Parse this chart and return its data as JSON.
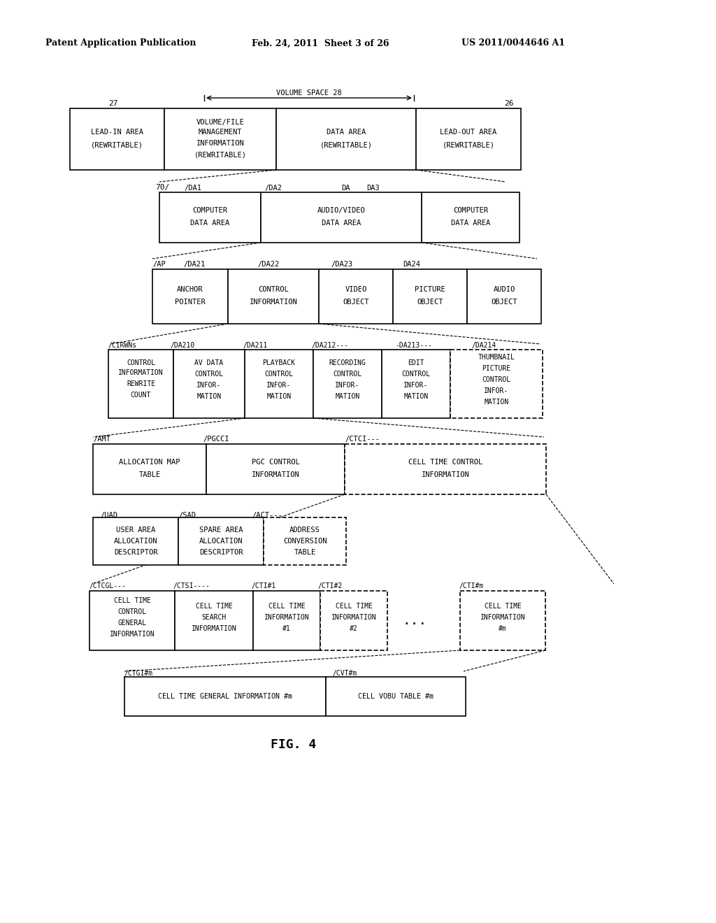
{
  "title": "FIG. 4",
  "header_left": "Patent Application Publication",
  "header_mid": "Feb. 24, 2011  Sheet 3 of 26",
  "header_right": "US 2011/0044646 A1",
  "bg_color": "#ffffff",
  "text_color": "#000000"
}
